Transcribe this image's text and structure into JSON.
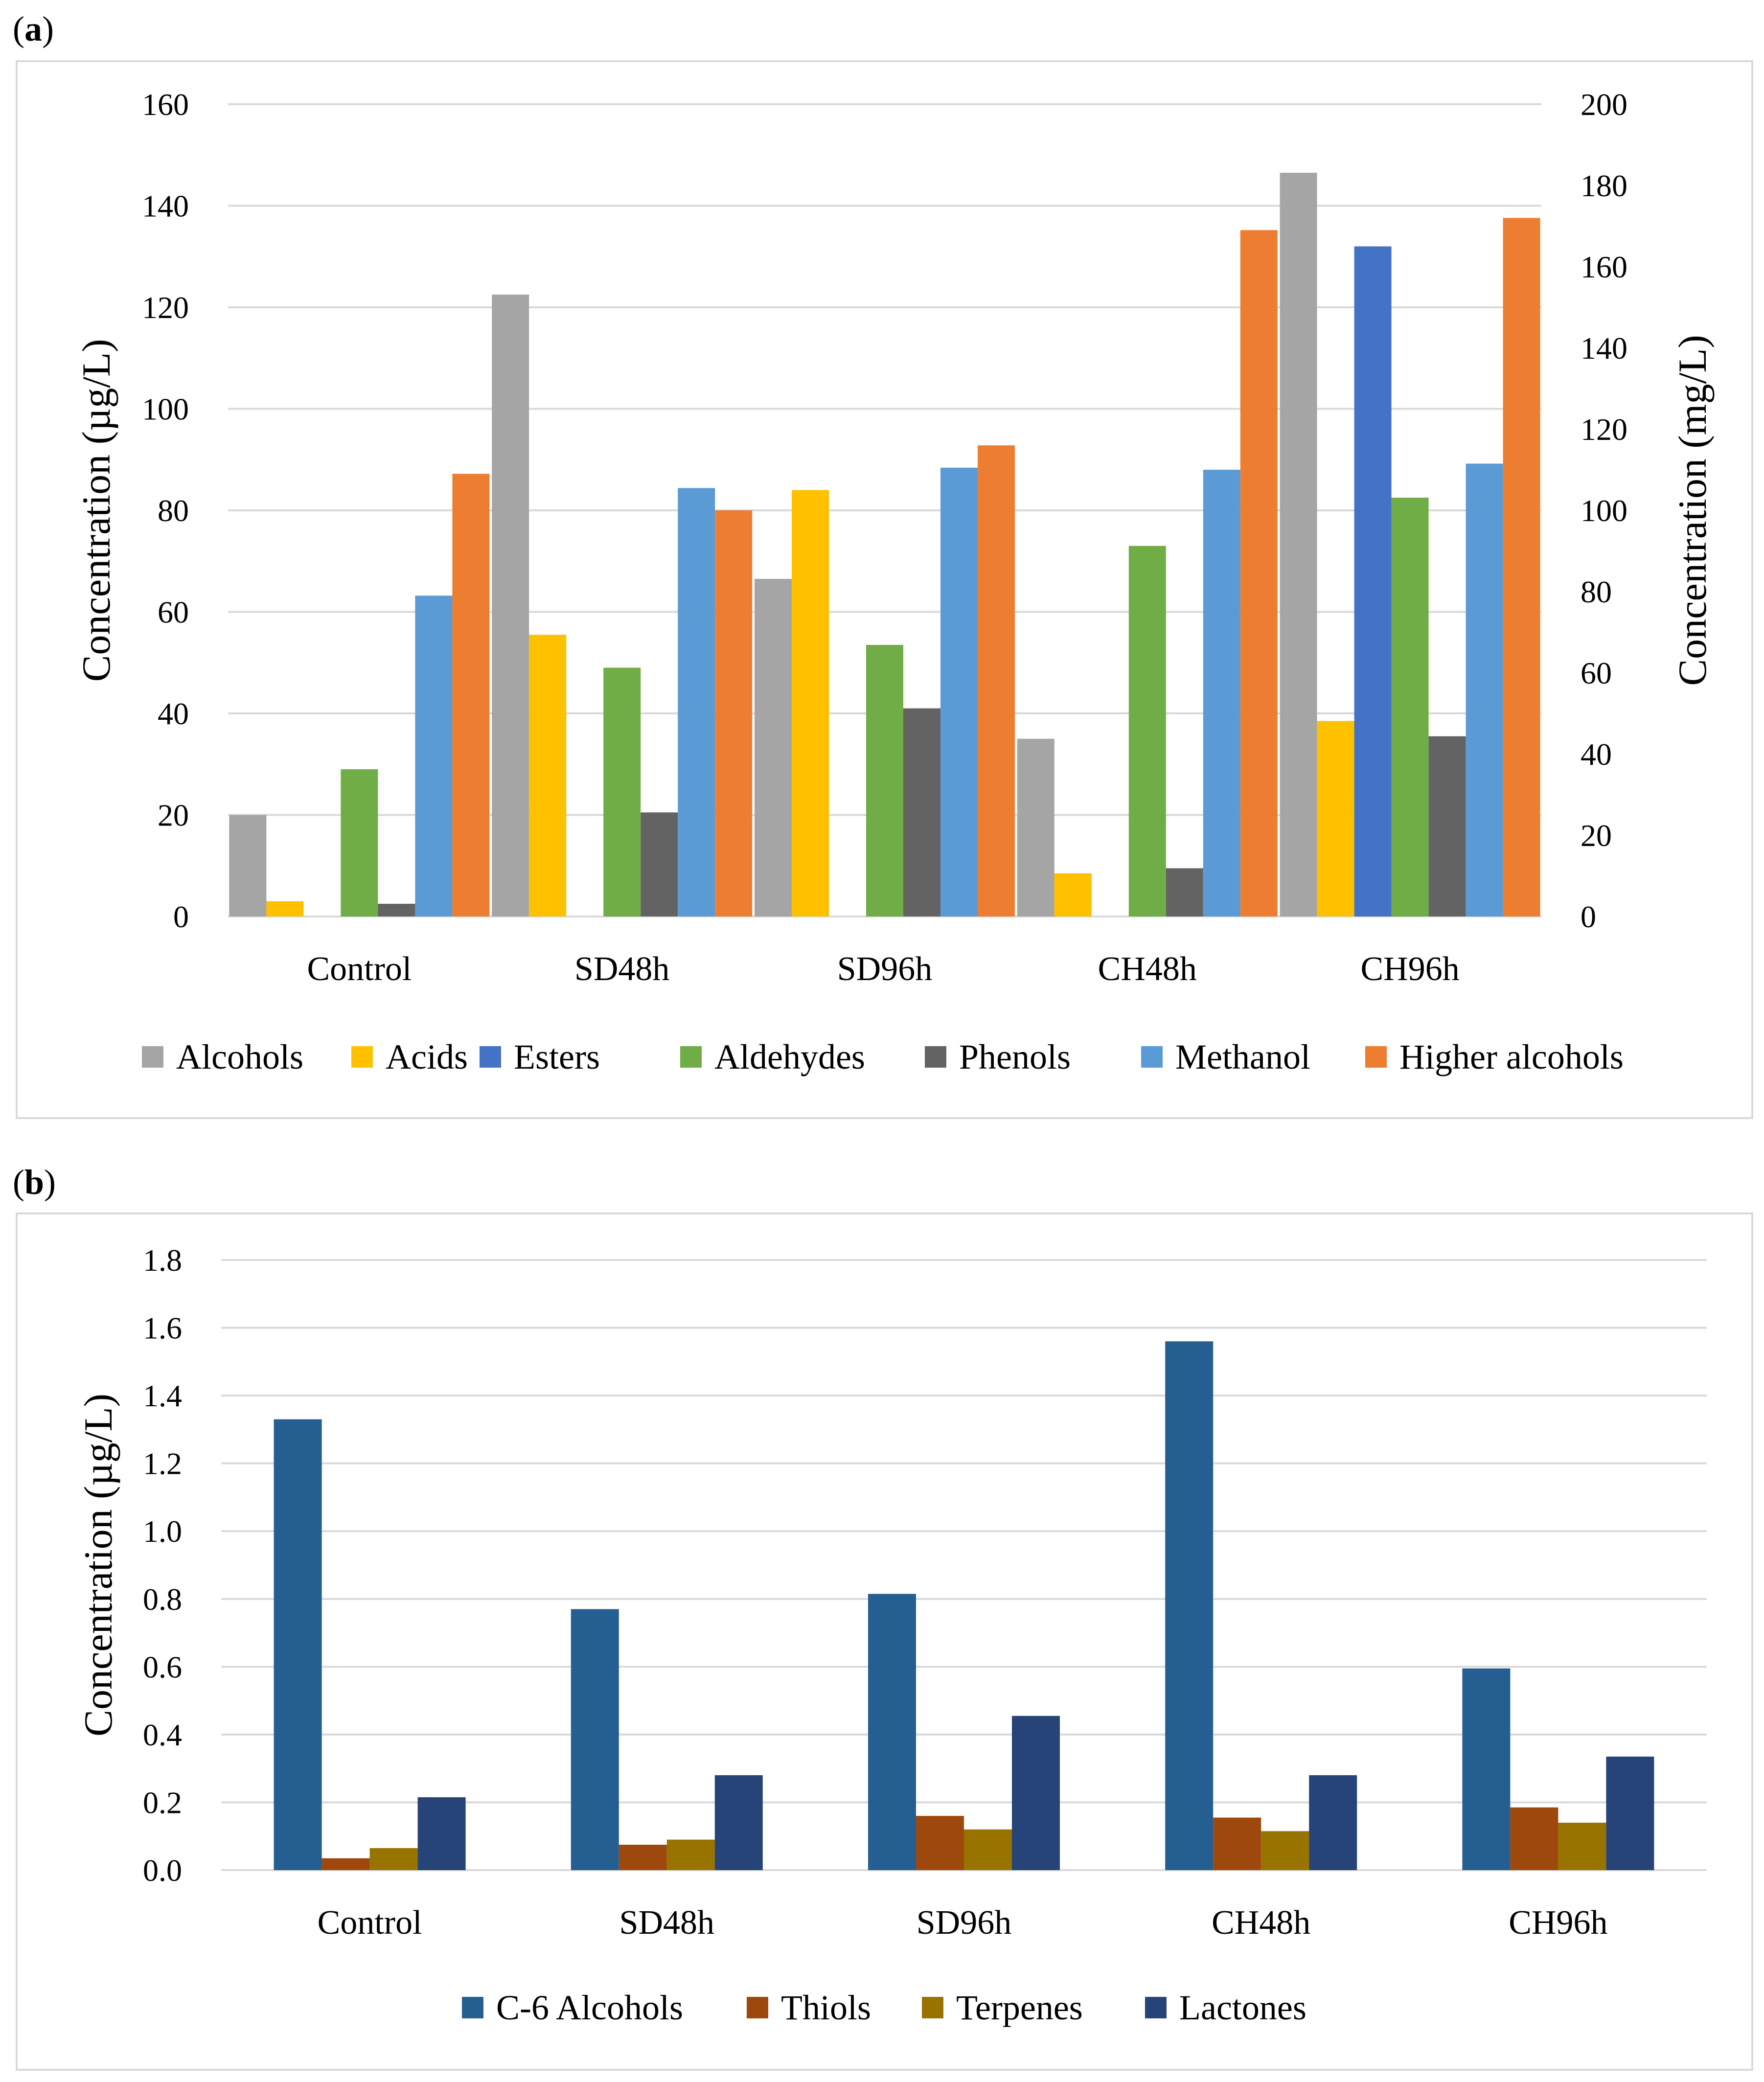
{
  "panels": [
    {
      "label_open": "(",
      "label_letter": "a",
      "label_close": ")"
    },
    {
      "label_open": "(",
      "label_letter": "b",
      "label_close": ")"
    }
  ],
  "chart_data": [
    {
      "type": "bar",
      "panel": "a",
      "title": "",
      "categories": [
        "Control",
        "SD48h",
        "SD96h",
        "CH48h",
        "CH96h"
      ],
      "ylabel": "Concentration (µg/L)",
      "y2label": "Concentration (mg/L)",
      "ylim": [
        0,
        160
      ],
      "y2lim": [
        0,
        200
      ],
      "yticks": [
        "0",
        "20",
        "40",
        "60",
        "80",
        "100",
        "120",
        "140",
        "160"
      ],
      "y2ticks": [
        "0",
        "20",
        "40",
        "60",
        "80",
        "100",
        "120",
        "140",
        "160",
        "180",
        "200"
      ],
      "grid": true,
      "legend_position": "bottom",
      "series": [
        {
          "name": "Alcohols",
          "axis": "left",
          "color": "#a5a5a5",
          "values": [
            20,
            122.5,
            66.5,
            35,
            146.5
          ]
        },
        {
          "name": "Acids",
          "axis": "left",
          "color": "#ffc000",
          "values": [
            3,
            55.5,
            84,
            8.5,
            38.5
          ]
        },
        {
          "name": "Esters",
          "axis": "left",
          "color": "#4472c4",
          "values": [
            0,
            0,
            0,
            0,
            132
          ]
        },
        {
          "name": "Aldehydes",
          "axis": "left",
          "color": "#70ad47",
          "values": [
            29,
            49,
            53.5,
            73,
            82.5
          ]
        },
        {
          "name": "Phenols",
          "axis": "left",
          "color": "#636363",
          "values": [
            2.5,
            20.5,
            41,
            9.5,
            35.5
          ]
        },
        {
          "name": "Methanol",
          "axis": "right",
          "color": "#5b9bd5",
          "values": [
            79,
            105.5,
            110.5,
            110,
            111.5
          ]
        },
        {
          "name": "Higher alcohols",
          "axis": "right",
          "color": "#ed7d31",
          "values": [
            109,
            100,
            116,
            169,
            172
          ]
        }
      ]
    },
    {
      "type": "bar",
      "panel": "b",
      "title": "",
      "categories": [
        "Control",
        "SD48h",
        "SD96h",
        "CH48h",
        "CH96h"
      ],
      "ylabel": "Concentration (µg/L)",
      "ylim": [
        0,
        1.8
      ],
      "yticks": [
        "0.0",
        "0.2",
        "0.4",
        "0.6",
        "0.8",
        "1.0",
        "1.2",
        "1.4",
        "1.6",
        "1.8"
      ],
      "grid": true,
      "legend_position": "bottom",
      "series": [
        {
          "name": "C-6 Alcohols",
          "color": "#255e91",
          "values": [
            1.33,
            0.77,
            0.815,
            1.56,
            0.595
          ]
        },
        {
          "name": "Thiols",
          "color": "#9e480e",
          "values": [
            0.035,
            0.075,
            0.16,
            0.155,
            0.185
          ]
        },
        {
          "name": "Terpenes",
          "color": "#997300",
          "values": [
            0.065,
            0.09,
            0.12,
            0.115,
            0.14
          ]
        },
        {
          "name": "Lactones",
          "color": "#264478",
          "values": [
            0.215,
            0.28,
            0.455,
            0.28,
            0.335
          ]
        }
      ]
    }
  ]
}
